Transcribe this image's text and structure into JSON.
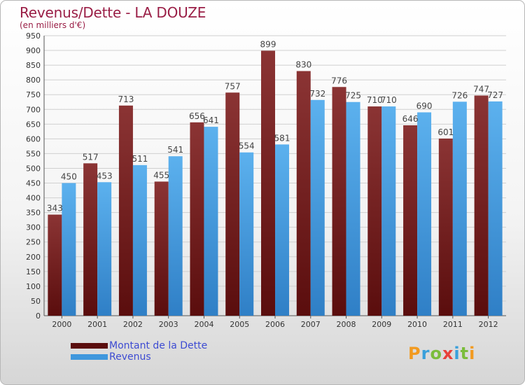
{
  "header": {
    "title": "Revenus/Dette - LA DOUZE",
    "subtitle": "(en milliers d'€)"
  },
  "colors": {
    "dette": "#7a1c1c",
    "revenus": "#4aa2e2",
    "title": "#9a1e46",
    "legend_text": "#3d4bd2"
  },
  "chart_data": {
    "type": "bar",
    "categories": [
      "2000",
      "2001",
      "2002",
      "2003",
      "2004",
      "2005",
      "2006",
      "2007",
      "2008",
      "2009",
      "2010",
      "2011",
      "2012"
    ],
    "series": [
      {
        "name": "Montant de la Dette",
        "values": [
          343,
          517,
          713,
          455,
          656,
          757,
          899,
          830,
          776,
          710,
          646,
          601,
          747
        ]
      },
      {
        "name": "Revenus",
        "values": [
          450,
          453,
          511,
          541,
          641,
          554,
          581,
          732,
          725,
          710,
          690,
          726,
          727
        ]
      }
    ],
    "ylim": [
      0,
      950
    ],
    "yticks": [
      0,
      50,
      100,
      150,
      200,
      250,
      300,
      350,
      400,
      450,
      500,
      550,
      600,
      650,
      700,
      750,
      800,
      850,
      900,
      950
    ],
    "grid": true,
    "legend_position": "bottom-left"
  },
  "legend": {
    "items": [
      {
        "label": "Montant de la Dette"
      },
      {
        "label": "Revenus"
      }
    ]
  },
  "logo": {
    "text": "Proxiti",
    "letters": [
      {
        "ch": "P",
        "color": "#f29a1f"
      },
      {
        "ch": "r",
        "color": "#3aa0db"
      },
      {
        "ch": "o",
        "color": "#7bbd3c"
      },
      {
        "ch": "x",
        "color": "#e8403a"
      },
      {
        "ch": "i",
        "color": "#3aa0db"
      },
      {
        "ch": "t",
        "color": "#7bbd3c"
      },
      {
        "ch": "i",
        "color": "#f29a1f"
      }
    ]
  }
}
